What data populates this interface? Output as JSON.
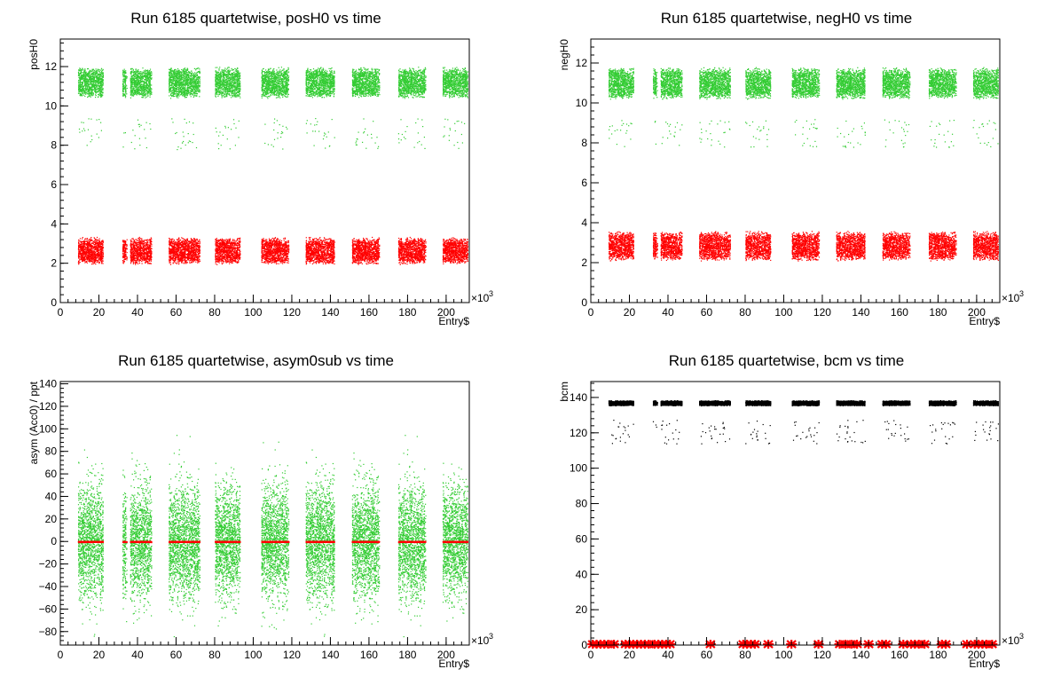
{
  "chart_data": [
    {
      "type": "scatter",
      "title": "Run 6185 quartetwise, posH0 vs time",
      "xlabel": "Entry$",
      "ylabel": "posH0",
      "x_multiplier": "×10",
      "x_multiplier_exp": "3",
      "xlim": [
        0,
        212
      ],
      "ylim": [
        0,
        13.4
      ],
      "xticks": [
        "0",
        "20",
        "40",
        "60",
        "80",
        "100",
        "120",
        "140",
        "160",
        "180",
        "200"
      ],
      "yticks": [
        "0",
        "2",
        "4",
        "6",
        "8",
        "10",
        "12"
      ],
      "grid": false,
      "series": [
        {
          "color": "#33cc33",
          "band_center": 11.2,
          "band_half_height": 0.8,
          "sparse_band": [
            7.8,
            9.4
          ],
          "x_blocks": [
            [
              9,
              22
            ],
            [
              32,
              34
            ],
            [
              36,
              47
            ],
            [
              56,
              72
            ],
            [
              80,
              93
            ],
            [
              104,
              118
            ],
            [
              127,
              142
            ],
            [
              151,
              165
            ],
            [
              175,
              189
            ],
            [
              198,
              211
            ]
          ]
        },
        {
          "color": "#ff0000",
          "band_center": 2.65,
          "band_half_height": 0.7,
          "x_blocks": [
            [
              9,
              22
            ],
            [
              32,
              34
            ],
            [
              36,
              47
            ],
            [
              56,
              72
            ],
            [
              80,
              93
            ],
            [
              104,
              118
            ],
            [
              127,
              142
            ],
            [
              151,
              165
            ],
            [
              175,
              189
            ],
            [
              198,
              211
            ]
          ]
        }
      ]
    },
    {
      "type": "scatter",
      "title": "Run 6185 quartetwise, negH0 vs time",
      "xlabel": "Entry$",
      "ylabel": "negH0",
      "x_multiplier": "×10",
      "x_multiplier_exp": "3",
      "xlim": [
        0,
        212
      ],
      "ylim": [
        0,
        13.2
      ],
      "xticks": [
        "0",
        "20",
        "40",
        "60",
        "80",
        "100",
        "120",
        "140",
        "160",
        "180",
        "200"
      ],
      "yticks": [
        "0",
        "2",
        "4",
        "6",
        "8",
        "10",
        "12"
      ],
      "grid": false,
      "series": [
        {
          "color": "#33cc33",
          "band_center": 11.0,
          "band_half_height": 0.8,
          "sparse_band": [
            7.8,
            9.2
          ],
          "x_blocks": [
            [
              9,
              22
            ],
            [
              32,
              34
            ],
            [
              36,
              47
            ],
            [
              56,
              72
            ],
            [
              80,
              93
            ],
            [
              104,
              118
            ],
            [
              127,
              142
            ],
            [
              151,
              165
            ],
            [
              175,
              189
            ],
            [
              198,
              211
            ]
          ]
        },
        {
          "color": "#ff0000",
          "band_center": 2.85,
          "band_half_height": 0.75,
          "x_blocks": [
            [
              9,
              22
            ],
            [
              32,
              34
            ],
            [
              36,
              47
            ],
            [
              56,
              72
            ],
            [
              80,
              93
            ],
            [
              104,
              118
            ],
            [
              127,
              142
            ],
            [
              151,
              165
            ],
            [
              175,
              189
            ],
            [
              198,
              211
            ]
          ]
        }
      ]
    },
    {
      "type": "scatter",
      "title": "Run 6185 quartetwise, asym0sub vs time",
      "xlabel": "Entry$",
      "ylabel": "asym (Acc0) / ppt",
      "x_multiplier": "×10",
      "x_multiplier_exp": "3",
      "xlim": [
        0,
        212
      ],
      "ylim": [
        -92,
        142
      ],
      "xticks": [
        "0",
        "20",
        "40",
        "60",
        "80",
        "100",
        "120",
        "140",
        "160",
        "180",
        "200"
      ],
      "yticks": [
        "−80",
        "−60",
        "−40",
        "−20",
        "0",
        "20",
        "40",
        "60",
        "80",
        "100",
        "120",
        "140"
      ],
      "ytick_values": [
        -80,
        -60,
        -40,
        -20,
        0,
        20,
        40,
        60,
        80,
        100,
        120,
        140
      ],
      "grid": false,
      "series": [
        {
          "color": "#33cc33",
          "band_center": 0,
          "band_half_height": 75,
          "dense_half_height": 45,
          "x_blocks": [
            [
              9,
              22
            ],
            [
              32,
              34
            ],
            [
              36,
              47
            ],
            [
              56,
              72
            ],
            [
              80,
              93
            ],
            [
              104,
              118
            ],
            [
              127,
              142
            ],
            [
              151,
              165
            ],
            [
              175,
              189
            ],
            [
              198,
              211
            ]
          ]
        },
        {
          "color": "#ff0000",
          "band_center": 0,
          "band_half_height": 0.6,
          "x_blocks": [
            [
              9,
              22
            ],
            [
              32,
              34
            ],
            [
              36,
              47
            ],
            [
              56,
              72
            ],
            [
              80,
              93
            ],
            [
              104,
              118
            ],
            [
              127,
              142
            ],
            [
              151,
              165
            ],
            [
              175,
              189
            ],
            [
              198,
              211
            ]
          ]
        }
      ]
    },
    {
      "type": "scatter",
      "title": "Run 6185 quartetwise, bcm vs time",
      "xlabel": "Entry$",
      "ylabel": "bcm",
      "x_multiplier": "×10",
      "x_multiplier_exp": "3",
      "xlim": [
        0,
        212
      ],
      "ylim": [
        0,
        149
      ],
      "xticks": [
        "0",
        "20",
        "40",
        "60",
        "80",
        "100",
        "120",
        "140",
        "160",
        "180",
        "200"
      ],
      "yticks": [
        "0",
        "20",
        "40",
        "60",
        "80",
        "100",
        "120",
        "140"
      ],
      "grid": false,
      "series": [
        {
          "color": "#000000",
          "band_center": 137,
          "band_half_height": 1.5,
          "sparse_band": [
            114,
            128
          ],
          "x_blocks": [
            [
              9,
              22
            ],
            [
              32,
              34
            ],
            [
              36,
              47
            ],
            [
              56,
              72
            ],
            [
              80,
              93
            ],
            [
              104,
              118
            ],
            [
              127,
              142
            ],
            [
              151,
              165
            ],
            [
              175,
              189
            ],
            [
              198,
              211
            ]
          ]
        },
        {
          "color": "#ff0000",
          "marker": "star",
          "y": 0.5,
          "x": [
            1,
            3,
            5,
            7,
            9,
            12,
            18,
            20,
            22,
            24,
            26,
            28,
            30,
            33,
            35,
            37,
            39,
            41,
            62,
            79,
            81,
            83,
            85,
            92,
            104,
            118,
            129,
            132,
            135,
            138,
            144,
            151,
            153,
            162,
            166,
            168,
            170,
            173,
            182,
            184,
            195,
            199,
            201,
            203,
            205,
            208
          ]
        }
      ]
    }
  ]
}
